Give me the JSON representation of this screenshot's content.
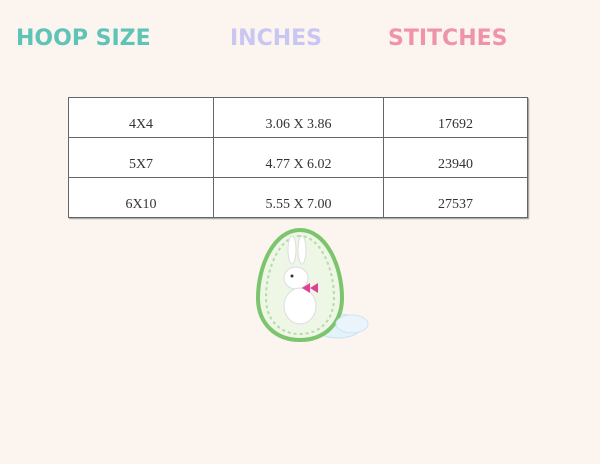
{
  "headers": [
    "HOOP SIZE",
    "INCHES",
    "STITCHES"
  ],
  "header_colors": [
    "#5fc4b8",
    "#c9c6f4",
    "#ef93ab"
  ],
  "rows": [
    [
      "4X4",
      "3.06 X 3.86",
      "17692"
    ],
    [
      "5X7",
      "4.77 X 6.02",
      "23940"
    ],
    [
      "6X10",
      "5.55 X 7.00",
      "27537"
    ]
  ],
  "image": {
    "icon": "easter-egg-bunny-embroidery"
  }
}
